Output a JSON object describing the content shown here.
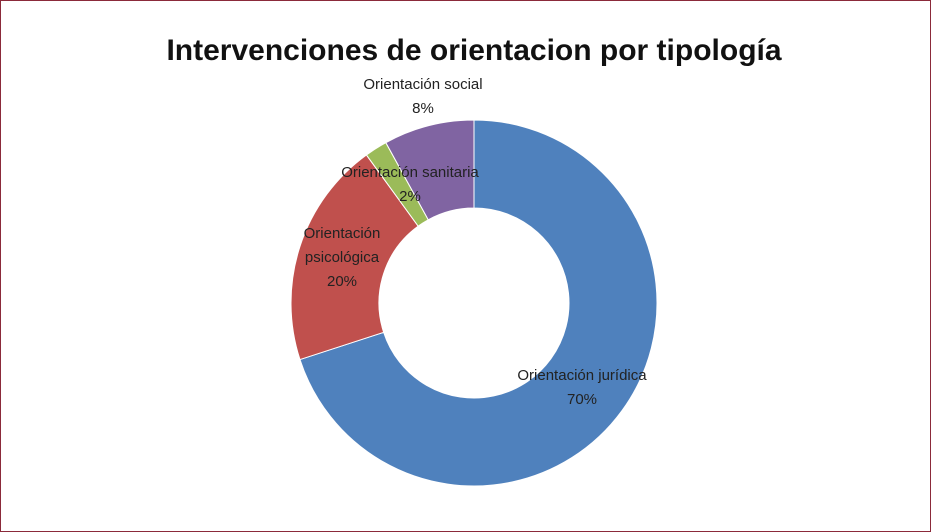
{
  "chart_data": {
    "type": "donut",
    "title": "Intervenciones de orientacion por tipología",
    "categories": [
      "Orientación jurídica",
      "Orientación psicológica",
      "Orientación sanitaria",
      "Orientación social"
    ],
    "values": [
      70,
      20,
      2,
      8
    ],
    "value_labels": [
      "70%",
      "20%",
      "2%",
      "8%"
    ],
    "colors": [
      "#4f81bd",
      "#c0504d",
      "#9bbb59",
      "#8064a2"
    ]
  }
}
